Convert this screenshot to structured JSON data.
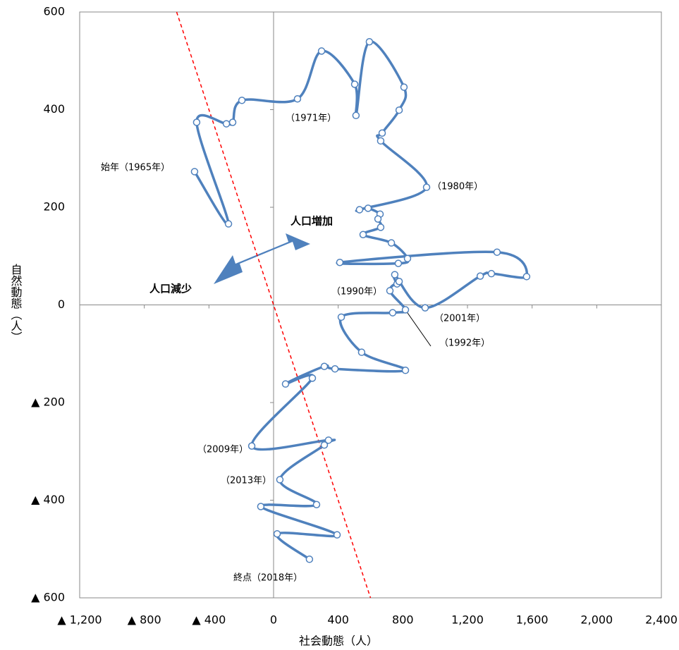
{
  "chart_data": {
    "type": "line",
    "x_label": "社会動態（人）",
    "y_label": "自然動態（人）",
    "xlim": [
      -1200,
      2400
    ],
    "ylim": [
      -600,
      600
    ],
    "xticks": [
      {
        "value": -1200,
        "label": "▲ 1,200"
      },
      {
        "value": -800,
        "label": "▲ 800"
      },
      {
        "value": -400,
        "label": "▲ 400"
      },
      0,
      400,
      {
        "value": 800,
        "label": "800"
      },
      {
        "value": 1200,
        "label": "1,200"
      },
      {
        "value": 1600,
        "label": "1,600"
      },
      {
        "value": 2000,
        "label": "2,000"
      },
      {
        "value": 2400,
        "label": "2,400"
      }
    ],
    "yticks": [
      {
        "value": -600,
        "label": "▲ 600"
      },
      {
        "value": -400,
        "label": "▲ 400"
      },
      {
        "value": -200,
        "label": "▲ 200"
      },
      0,
      200,
      400,
      600
    ],
    "negative_tick_color": "#ff0000",
    "series": [
      {
        "color": "#4f81bd",
        "smooth": true,
        "x": [
          -489,
          -279,
          -476,
          -292,
          -253,
          -196,
          148,
          297,
          502,
          510,
          593,
          807,
          777,
          672,
          663,
          947,
          532,
          585,
          659,
          646,
          663,
          554,
          729,
          829,
          772,
          410,
          1383,
          1566,
          1348,
          1279,
          938,
          750,
          764,
          777,
          720,
          816,
          737,
          419,
          545,
          816,
          380,
          314,
          74,
          240,
          -135,
          340,
          314,
          39,
          266,
          -79,
          393,
          22,
          222
        ],
        "values": [
          273,
          166,
          374,
          371,
          374,
          419,
          422,
          520,
          452,
          388,
          539,
          446,
          399,
          352,
          336,
          241,
          195,
          198,
          186,
          176,
          159,
          144,
          127,
          95,
          85,
          87,
          108,
          58,
          64,
          59,
          -6,
          62,
          43,
          48,
          29,
          -10,
          -16,
          -25,
          -97,
          -134,
          -131,
          -126,
          -162,
          -150,
          -289,
          -277,
          -287,
          -358,
          -409,
          -413,
          -471,
          -469,
          -521
        ]
      }
    ],
    "reference_line": {
      "x": [
        -600,
        600
      ],
      "values": [
        600,
        -600
      ],
      "color": "#ff0000",
      "dashed": true
    },
    "annotations": [
      "始年（1965年）",
      "（1971年）",
      "（1980年）",
      "（1990年）",
      "（2001年）",
      "（1992年）",
      "（2009年）",
      "（2013年）",
      "終点（2018年）",
      "人口増加",
      "人口減少"
    ]
  }
}
